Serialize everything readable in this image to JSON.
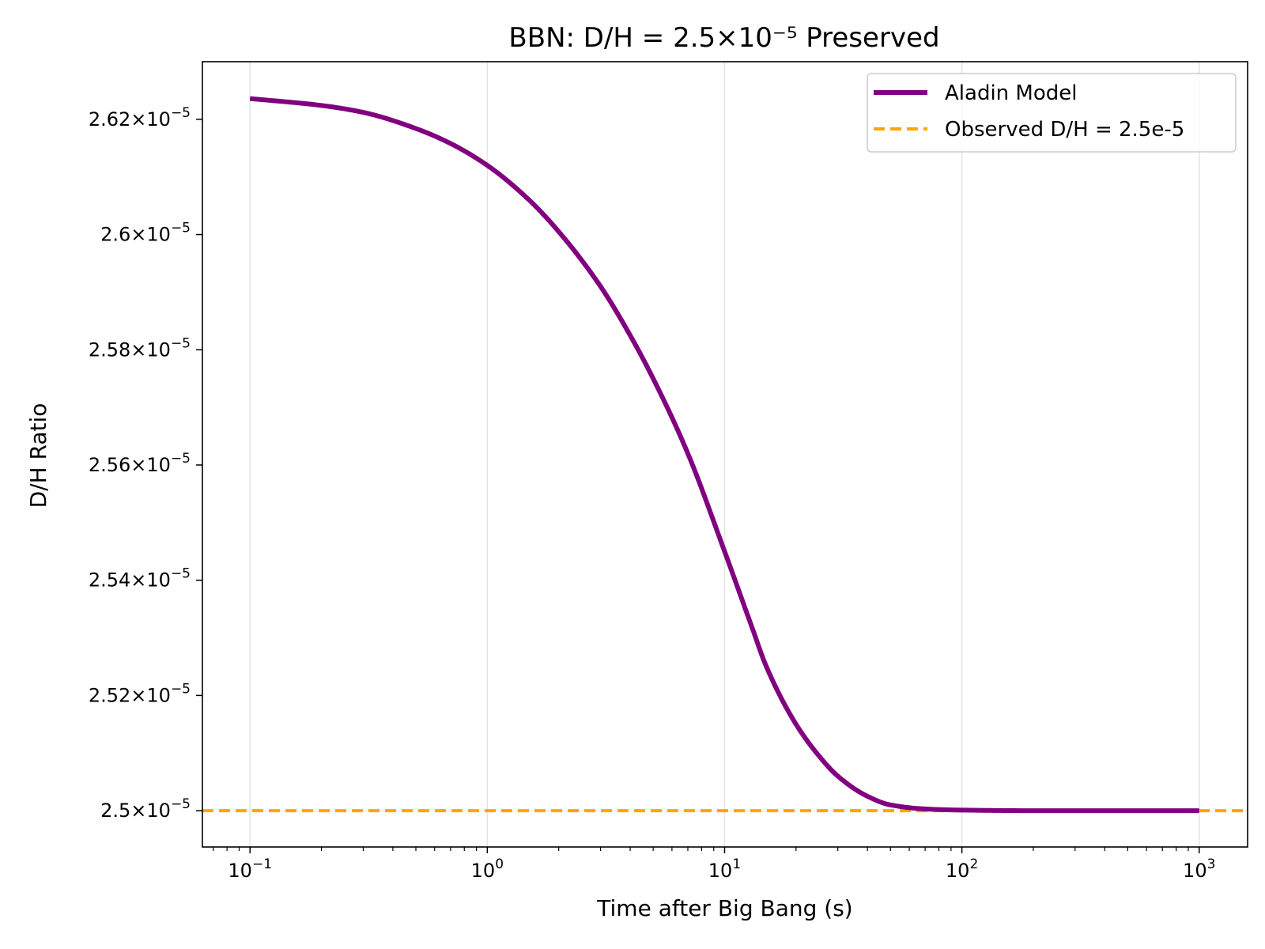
{
  "chart_data": {
    "type": "line",
    "title": "BBN: D/H = 2.5×10⁻⁵ Preserved",
    "xlabel": "Time after Big Bang (s)",
    "ylabel": "D/H Ratio",
    "xscale": "log",
    "xlim": [
      0.063,
      1600
    ],
    "ylim": [
      2.4937e-05,
      2.63e-05
    ],
    "grid": "vertical at major x ticks",
    "legend_position": "upper right",
    "x_ticks": [
      {
        "value": 0.1,
        "base": "10",
        "exp": "−1"
      },
      {
        "value": 1,
        "base": "10",
        "exp": "0"
      },
      {
        "value": 10,
        "base": "10",
        "exp": "1"
      },
      {
        "value": 100,
        "base": "10",
        "exp": "2"
      },
      {
        "value": 1000,
        "base": "10",
        "exp": "3"
      }
    ],
    "y_ticks": [
      {
        "value": 2.5e-05,
        "mant": "2.5",
        "exp": "−5"
      },
      {
        "value": 2.52e-05,
        "mant": "2.52",
        "exp": "−5"
      },
      {
        "value": 2.54e-05,
        "mant": "2.54",
        "exp": "−5"
      },
      {
        "value": 2.56e-05,
        "mant": "2.56",
        "exp": "−5"
      },
      {
        "value": 2.58e-05,
        "mant": "2.58",
        "exp": "−5"
      },
      {
        "value": 2.6e-05,
        "mant": "2.6",
        "exp": "−5"
      },
      {
        "value": 2.62e-05,
        "mant": "2.62",
        "exp": "−5"
      }
    ],
    "series": [
      {
        "name": "Aladin Model",
        "color": "#800080",
        "style": "solid",
        "points": [
          [
            0.1,
            2.6236e-05
          ],
          [
            0.2,
            2.6224e-05
          ],
          [
            0.3,
            2.6212e-05
          ],
          [
            0.5,
            2.6184e-05
          ],
          [
            0.7,
            2.6158e-05
          ],
          [
            1,
            2.612e-05
          ],
          [
            1.5,
            2.606e-05
          ],
          [
            2,
            2.6005e-05
          ],
          [
            3,
            2.591e-05
          ],
          [
            4,
            2.5825e-05
          ],
          [
            5,
            2.575e-05
          ],
          [
            7,
            2.562e-05
          ],
          [
            10,
            2.545e-05
          ],
          [
            13,
            2.532e-05
          ],
          [
            15,
            2.525e-05
          ],
          [
            20,
            2.515e-05
          ],
          [
            25,
            2.5095e-05
          ],
          [
            30,
            2.506e-05
          ],
          [
            40,
            2.5025e-05
          ],
          [
            50,
            2.501e-05
          ],
          [
            70,
            2.5003e-05
          ],
          [
            100,
            2.5001e-05
          ],
          [
            200,
            2.5e-05
          ],
          [
            500,
            2.5e-05
          ],
          [
            1000,
            2.5e-05
          ]
        ]
      },
      {
        "name": "Observed D/H = 2.5e-5",
        "color": "#FFA500",
        "style": "dashed",
        "y": 2.5e-05
      }
    ]
  }
}
